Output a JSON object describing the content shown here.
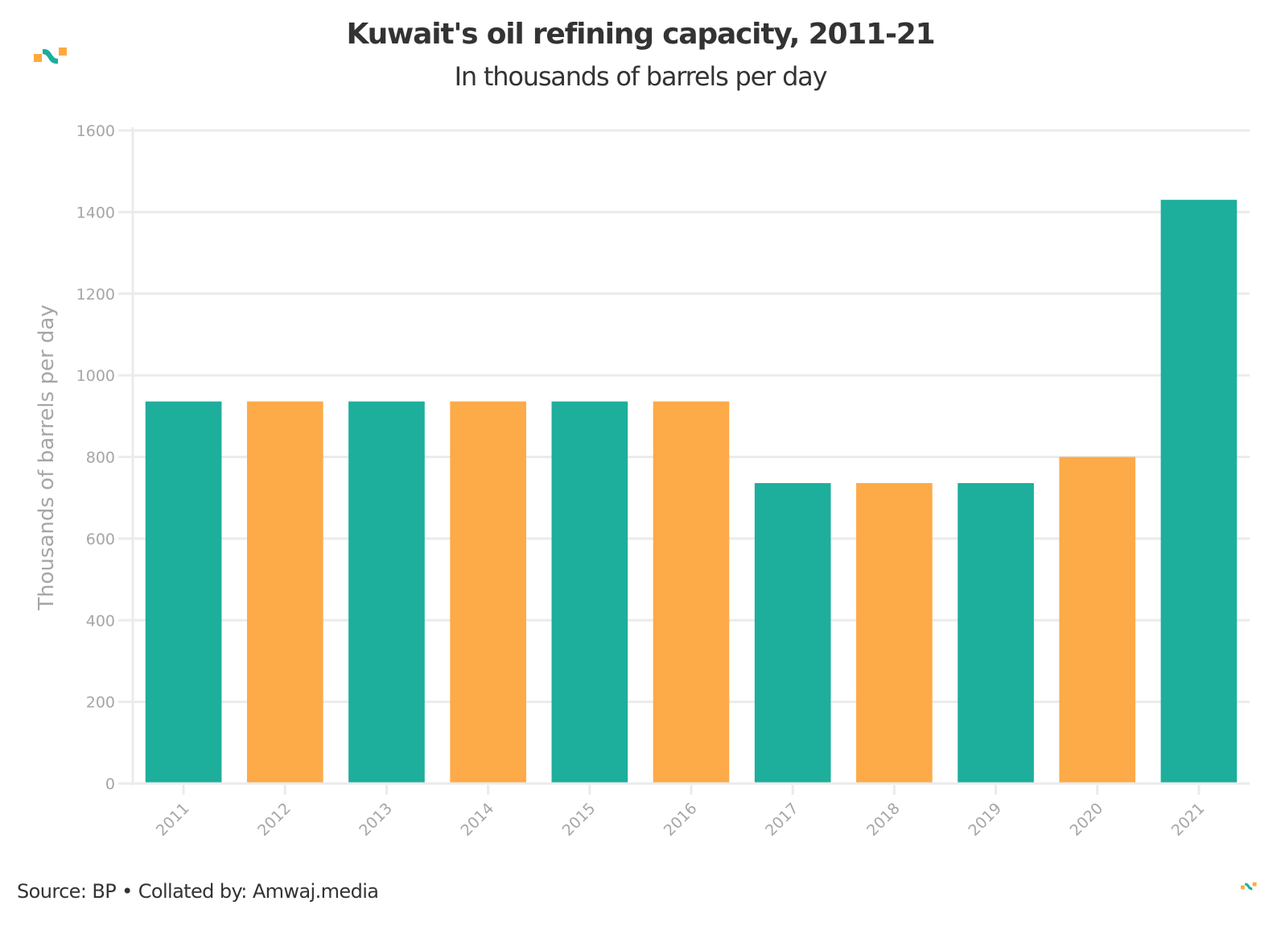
{
  "header": {
    "title": "Kuwait's oil refining capacity, 2011-21",
    "subtitle": "In thousands of barrels per day"
  },
  "footer": {
    "source": "Source: BP • Collated by: Amwaj.media"
  },
  "logo": {
    "icon": "amwaj-logo-icon",
    "colors": {
      "green": "#1aae9c",
      "orange": "#fea93f"
    }
  },
  "colors": {
    "teal": "#1dae9c",
    "orange": "#fdaa48",
    "grid": "#ebebeb",
    "tick": "#a6a6a6",
    "text": "#333333"
  },
  "chart_data": {
    "type": "bar",
    "title": "Kuwait's oil refining capacity, 2011-21",
    "subtitle": "In thousands of barrels per day",
    "xlabel": "",
    "ylabel": "Thousands of barrels per day",
    "categories": [
      "2011",
      "2012",
      "2013",
      "2014",
      "2015",
      "2016",
      "2017",
      "2018",
      "2019",
      "2020",
      "2021"
    ],
    "values": [
      936,
      936,
      936,
      936,
      936,
      936,
      736,
      736,
      736,
      800,
      1430
    ],
    "bar_colors": [
      "#1dae9c",
      "#fdaa48",
      "#1dae9c",
      "#fdaa48",
      "#1dae9c",
      "#fdaa48",
      "#1dae9c",
      "#fdaa48",
      "#1dae9c",
      "#fdaa48",
      "#1dae9c"
    ],
    "ylim": [
      0,
      1600
    ],
    "yticks": [
      0,
      200,
      400,
      600,
      800,
      1000,
      1200,
      1400,
      1600
    ],
    "ytick_labels": [
      "0",
      "200",
      "400",
      "600",
      "800",
      "1000",
      "1200",
      "1400",
      "1600"
    ],
    "grid": true,
    "legend": "none"
  }
}
